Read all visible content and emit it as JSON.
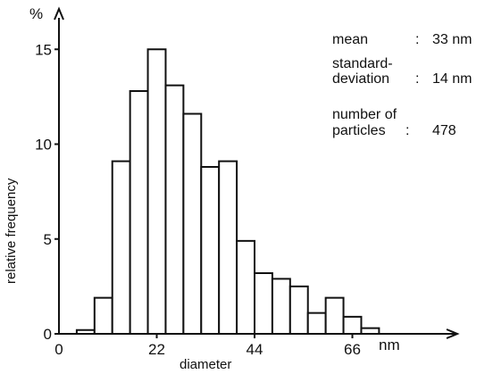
{
  "chart_data": {
    "type": "bar",
    "title": "",
    "xlabel": "diameter",
    "ylabel": "relative frequency",
    "x_unit": "nm",
    "y_unit": "%",
    "bin_width": 4,
    "xlim": [
      0,
      88
    ],
    "ylim": [
      0,
      16
    ],
    "x_ticks": [
      "0",
      "22",
      "44",
      "66"
    ],
    "y_ticks": [
      "0",
      "5",
      "10",
      "15"
    ],
    "bins": [
      {
        "x": 6,
        "value": 0.2
      },
      {
        "x": 10,
        "value": 1.9
      },
      {
        "x": 14,
        "value": 9.1
      },
      {
        "x": 18,
        "value": 12.8
      },
      {
        "x": 22,
        "value": 15.0
      },
      {
        "x": 26,
        "value": 13.1
      },
      {
        "x": 30,
        "value": 11.6
      },
      {
        "x": 34,
        "value": 8.8
      },
      {
        "x": 38,
        "value": 9.1
      },
      {
        "x": 42,
        "value": 4.9
      },
      {
        "x": 46,
        "value": 3.2
      },
      {
        "x": 50,
        "value": 2.9
      },
      {
        "x": 54,
        "value": 2.5
      },
      {
        "x": 58,
        "value": 1.1
      },
      {
        "x": 62,
        "value": 1.9
      },
      {
        "x": 66,
        "value": 0.9
      },
      {
        "x": 70,
        "value": 0.3
      }
    ],
    "grid": false,
    "legend": "none",
    "annotations": [
      {
        "label": "mean",
        "separator": ":",
        "value": "33 nm"
      },
      {
        "label": [
          "standard-",
          "deviation"
        ],
        "separator": ":",
        "value": "14 nm"
      },
      {
        "label": [
          "number of",
          "particles"
        ],
        "separator": ":",
        "value": "478"
      }
    ]
  }
}
